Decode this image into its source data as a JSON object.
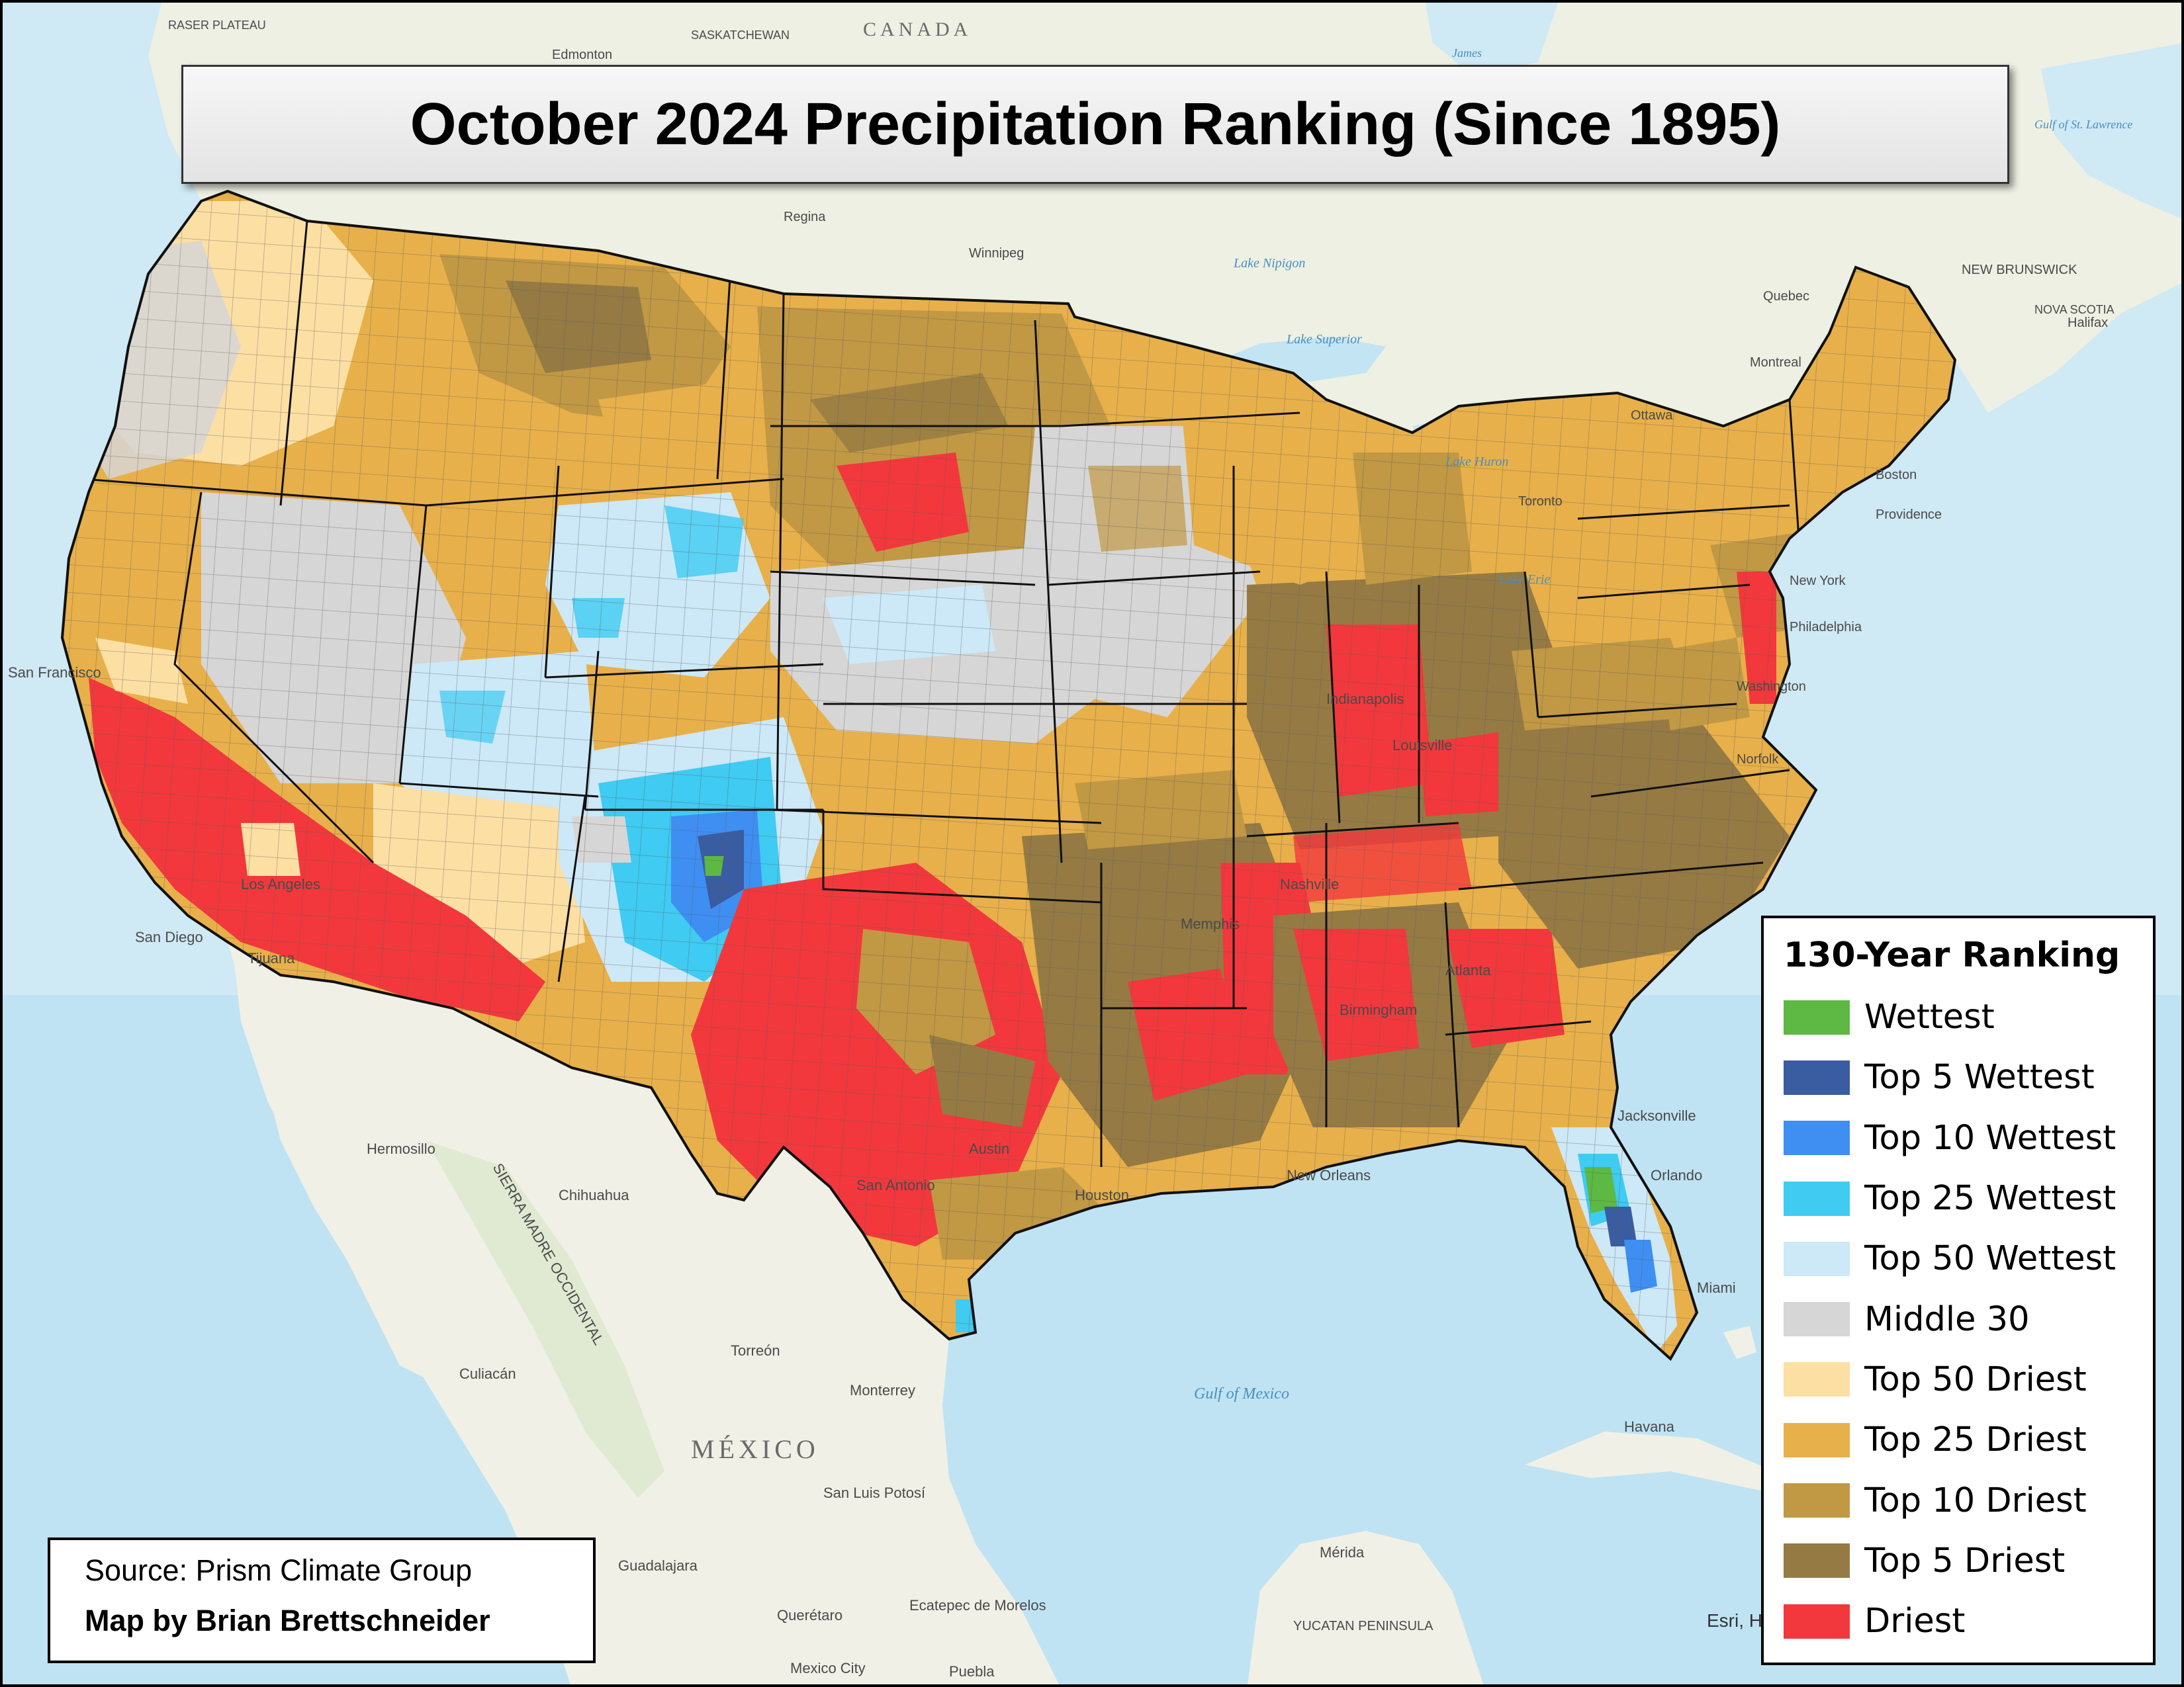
{
  "map": {
    "title": "October 2024 Precipitation Ranking (Since 1895)",
    "source": "Source: Prism Climate Group",
    "author": "Map by Brian Brettschneider",
    "attribution": "Esri, H",
    "colors": {
      "ocean": "#d2ecf6",
      "land_outside": "#eef0e6",
      "wettest": "#5db844",
      "top5_wettest": "#3a5ca0",
      "top10_wettest": "#3f8ef2",
      "top25_wettest": "#3fcbf2",
      "top50_wettest": "#cde8f7",
      "middle30": "#d6d6d6",
      "top50_driest": "#fcdfa3",
      "top25_driest": "#e8b04a",
      "top10_driest": "#c19844",
      "top5_driest": "#957a44",
      "driest": "#f2383c"
    }
  },
  "legend": {
    "title": "130-Year Ranking",
    "items": [
      {
        "label": "Wettest",
        "color": "#5db844"
      },
      {
        "label": "Top 5 Wettest",
        "color": "#3a5ca0"
      },
      {
        "label": "Top 10 Wettest",
        "color": "#3f8ef2"
      },
      {
        "label": "Top 25 Wettest",
        "color": "#3fcbf2"
      },
      {
        "label": "Top 50 Wettest",
        "color": "#cde8f7"
      },
      {
        "label": "Middle 30",
        "color": "#d6d6d6"
      },
      {
        "label": "Top 50 Driest",
        "color": "#fcdfa3"
      },
      {
        "label": "Top 25 Driest",
        "color": "#e8b04a"
      },
      {
        "label": "Top 10 Driest",
        "color": "#c19844"
      },
      {
        "label": "Top 5 Driest",
        "color": "#957a44"
      },
      {
        "label": "Driest",
        "color": "#f2383c"
      }
    ]
  },
  "labels": {
    "canada": "CANADA",
    "saskatchewan": "SASKATCHEWAN",
    "fraser_plateau": "RASER PLATEAU",
    "edmonton": "Edmonton",
    "regina": "Regina",
    "winnipeg": "Winnipeg",
    "lake_nipigon": "Lake Nipigon",
    "lake_superior": "Lake Superior",
    "lake_huron": "Lake Huron",
    "lake_erie": "Lake Erie",
    "james_bay": "James",
    "quebec": "Quebec",
    "montreal": "Montreal",
    "ottawa": "Ottawa",
    "toronto": "Toronto",
    "new_brunswick": "NEW BRUNSWICK",
    "nova_scotia": "NOVA SCOTIA",
    "halifax": "Halifax",
    "gulf_st_lawrence": "Gulf of St. Lawrence",
    "boston": "Boston",
    "providence": "Providence",
    "new_york": "New York",
    "philadelphia": "Philadelphia",
    "washington": "Washington",
    "norfolk": "Norfolk",
    "jacksonville": "Jacksonville",
    "orlando": "Orlando",
    "miami": "Miami",
    "havana": "Havana",
    "new_orleans": "New Orleans",
    "houston": "Houston",
    "austin": "Austin",
    "san_antonio": "San Antonio",
    "nashville": "Nashville",
    "memphis": "Memphis",
    "birmingham": "Birmingham",
    "atlanta": "Atlanta",
    "louisville": "Louisville",
    "indianapolis": "Indianapolis",
    "san_francisco": "San Francisco",
    "los_angeles": "Los Angeles",
    "san_diego": "San Diego",
    "tijuana": "Tijuana",
    "hermosillo": "Hermosillo",
    "chihuahua": "Chihuahua",
    "culiacan": "Culiacán",
    "torreon": "Torreón",
    "monterrey": "Monterrey",
    "mexico": "MÉXICO",
    "san_luis_potosi": "San Luis Potosí",
    "guadalajara": "Guadalajara",
    "queretaro": "Querétaro",
    "ecatepec": "Ecatepec de Morelos",
    "mexico_city": "Mexico City",
    "puebla": "Puebla",
    "merida": "Mérida",
    "yucatan": "YUCATAN PENINSULA",
    "gulf_of_mexico": "Gulf of Mexico",
    "sierra_madre": "SIERRA MADRE OCCIDENTAL"
  }
}
